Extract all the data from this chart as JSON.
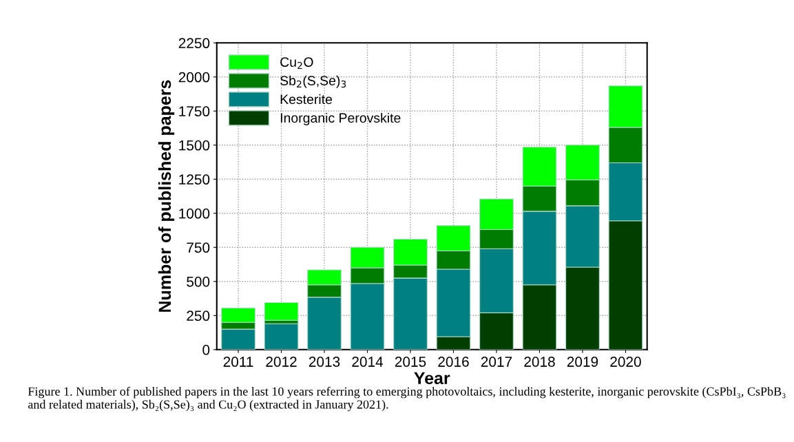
{
  "chart_data": {
    "type": "bar",
    "stacked": true,
    "xlabel": "Year",
    "ylabel": "Number of published papers",
    "categories": [
      "2011",
      "2012",
      "2013",
      "2014",
      "2015",
      "2016",
      "2017",
      "2018",
      "2019",
      "2020"
    ],
    "series": [
      {
        "name": "Inorganic Perovskite",
        "color": "#003f00",
        "values": [
          0,
          0,
          0,
          0,
          0,
          95,
          270,
          475,
          605,
          945
        ]
      },
      {
        "name": "Kesterite",
        "color": "#008080",
        "values": [
          150,
          190,
          385,
          485,
          525,
          495,
          470,
          540,
          450,
          425
        ]
      },
      {
        "name": "Sb$_{2}$(S,Se)$_{3}$",
        "color": "#007d00",
        "values": [
          50,
          25,
          90,
          115,
          95,
          135,
          140,
          185,
          190,
          260
        ]
      },
      {
        "name": "Cu$_{2}$O",
        "color": "#00ff00",
        "values": [
          105,
          130,
          110,
          150,
          190,
          185,
          225,
          285,
          255,
          305
        ]
      }
    ],
    "ylim": [
      0,
      2250
    ],
    "yticks": [
      0,
      250,
      500,
      750,
      1000,
      1250,
      1500,
      1750,
      2000,
      2250
    ],
    "grid": true,
    "legend": "top left",
    "annotations": [
      "Figure 1. Number of published papers in the last 10 years referring to emerging photovoltaics, including kesterite, inorganic perovskite (CsPbI₃, CsPbB₃ and related materials), Sb₂(S,Se)₃ and Cu₂O (extracted in January 2021)."
    ]
  }
}
